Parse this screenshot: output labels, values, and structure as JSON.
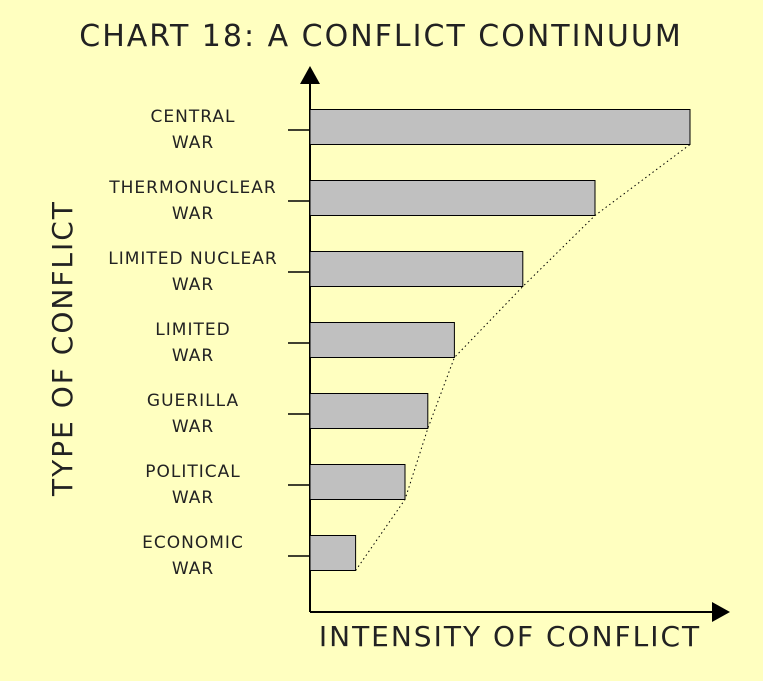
{
  "chart_data": {
    "type": "bar",
    "orientation": "horizontal",
    "title": "CHART 18: A CONFLICT CONTINUUM",
    "xlabel": "INTENSITY OF CONFLICT",
    "ylabel": "TYPE OF CONFLICT",
    "categories": [
      [
        "CENTRAL",
        "WAR"
      ],
      [
        "THERMONUCLEAR",
        "WAR"
      ],
      [
        "LIMITED NUCLEAR",
        "WAR"
      ],
      [
        "LIMITED",
        "WAR"
      ],
      [
        "GUERILLA",
        "WAR"
      ],
      [
        "POLITICAL",
        "WAR"
      ],
      [
        "ECONOMIC",
        "WAR"
      ]
    ],
    "values": [
      100,
      75,
      56,
      38,
      31,
      25,
      12
    ],
    "xlim": [
      0,
      110
    ],
    "trend_line": "dotted",
    "grid": false,
    "legend": "none",
    "colors": {
      "background": "#ffffc0",
      "bar_fill": "#c0c0c0",
      "stroke": "#000000",
      "text": "#222222"
    }
  }
}
